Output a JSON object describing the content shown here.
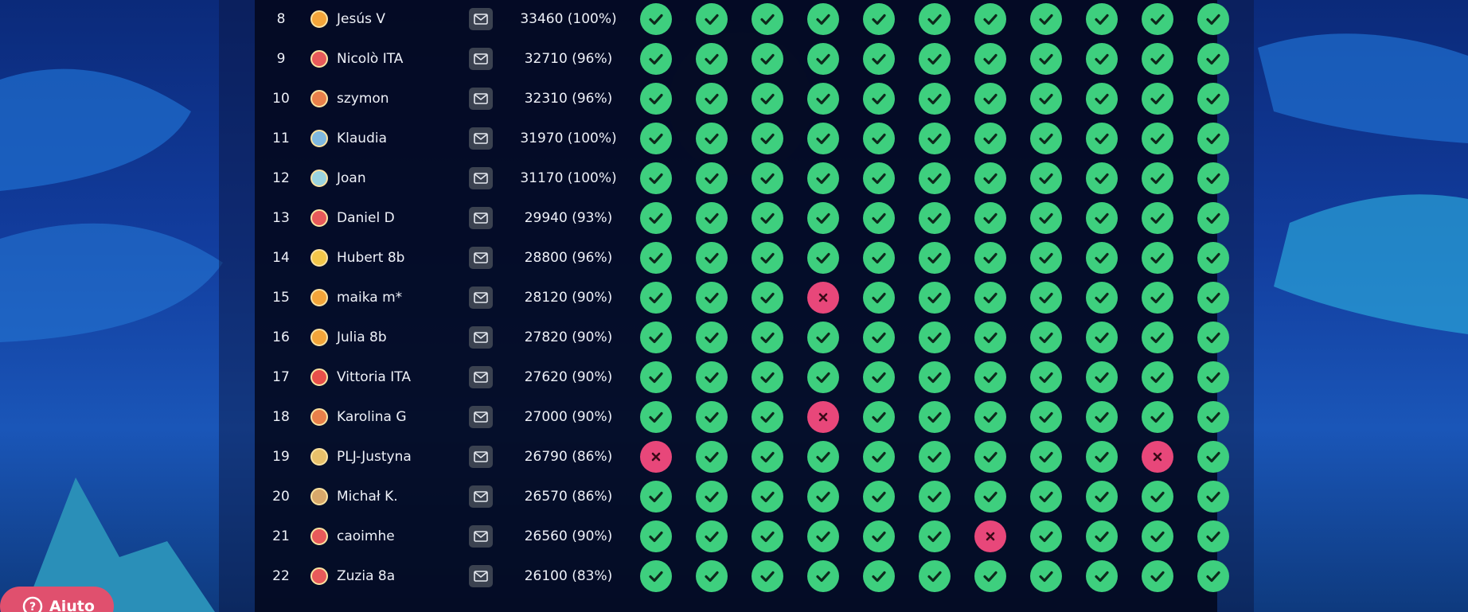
{
  "leaderboard": {
    "rows": [
      {
        "rank": "8",
        "name": "Jesús V",
        "score": "33460 (100%)",
        "results": [
          "check",
          "check",
          "check",
          "check",
          "check",
          "check",
          "check",
          "check",
          "check",
          "check",
          "check"
        ]
      },
      {
        "rank": "9",
        "name": "Nicolò ITA",
        "score": "32710 (96%)",
        "results": [
          "check",
          "check",
          "check",
          "check",
          "check",
          "check",
          "check",
          "check",
          "check",
          "check",
          "check"
        ]
      },
      {
        "rank": "10",
        "name": "szymon",
        "score": "32310 (96%)",
        "results": [
          "check",
          "check",
          "check",
          "check",
          "check",
          "check",
          "check",
          "check",
          "check",
          "check",
          "check"
        ]
      },
      {
        "rank": "11",
        "name": "Klaudia",
        "score": "31970 (100%)",
        "results": [
          "check",
          "check",
          "check",
          "check",
          "check",
          "check",
          "check",
          "check",
          "check",
          "check",
          "check"
        ]
      },
      {
        "rank": "12",
        "name": "Joan",
        "score": "31170 (100%)",
        "results": [
          "check",
          "check",
          "check",
          "check",
          "check",
          "check",
          "check",
          "check",
          "check",
          "check",
          "check"
        ]
      },
      {
        "rank": "13",
        "name": "Daniel D",
        "score": "29940 (93%)",
        "results": [
          "check",
          "check",
          "check",
          "check",
          "check",
          "check",
          "check",
          "check",
          "check",
          "check",
          "check"
        ]
      },
      {
        "rank": "14",
        "name": "Hubert 8b",
        "score": "28800 (96%)",
        "results": [
          "check",
          "check",
          "check",
          "check",
          "check",
          "check",
          "check",
          "check",
          "check",
          "check",
          "check"
        ]
      },
      {
        "rank": "15",
        "name": "maika m*",
        "score": "28120 (90%)",
        "results": [
          "check",
          "check",
          "check",
          "cross",
          "check",
          "check",
          "check",
          "check",
          "check",
          "check",
          "check"
        ]
      },
      {
        "rank": "16",
        "name": "Julia 8b",
        "score": "27820 (90%)",
        "results": [
          "check",
          "check",
          "check",
          "check",
          "check",
          "check",
          "check",
          "check",
          "check",
          "check",
          "check"
        ]
      },
      {
        "rank": "17",
        "name": "Vittoria ITA",
        "score": "27620 (90%)",
        "results": [
          "check",
          "check",
          "check",
          "check",
          "check",
          "check",
          "check",
          "check",
          "check",
          "check",
          "check"
        ]
      },
      {
        "rank": "18",
        "name": "Karolina G",
        "score": "27000 (90%)",
        "results": [
          "check",
          "check",
          "check",
          "cross",
          "check",
          "check",
          "check",
          "check",
          "check",
          "check",
          "check"
        ]
      },
      {
        "rank": "19",
        "name": "PLJ-Justyna",
        "score": "26790 (86%)",
        "results": [
          "cross",
          "check",
          "check",
          "check",
          "check",
          "check",
          "check",
          "check",
          "check",
          "cross",
          "check"
        ]
      },
      {
        "rank": "20",
        "name": "Michał K.",
        "score": "26570 (86%)",
        "results": [
          "check",
          "check",
          "check",
          "check",
          "check",
          "check",
          "check",
          "check",
          "check",
          "check",
          "check"
        ]
      },
      {
        "rank": "21",
        "name": "caoimhe",
        "score": "26560 (90%)",
        "results": [
          "check",
          "check",
          "check",
          "check",
          "check",
          "check",
          "cross",
          "check",
          "check",
          "check",
          "check"
        ]
      },
      {
        "rank": "22",
        "name": "Zuzia 8a",
        "score": "26100 (83%)",
        "results": [
          "check",
          "check",
          "check",
          "check",
          "check",
          "check",
          "check",
          "check",
          "check",
          "check",
          "check"
        ]
      }
    ]
  },
  "help_button": {
    "label": "Aiuto"
  }
}
